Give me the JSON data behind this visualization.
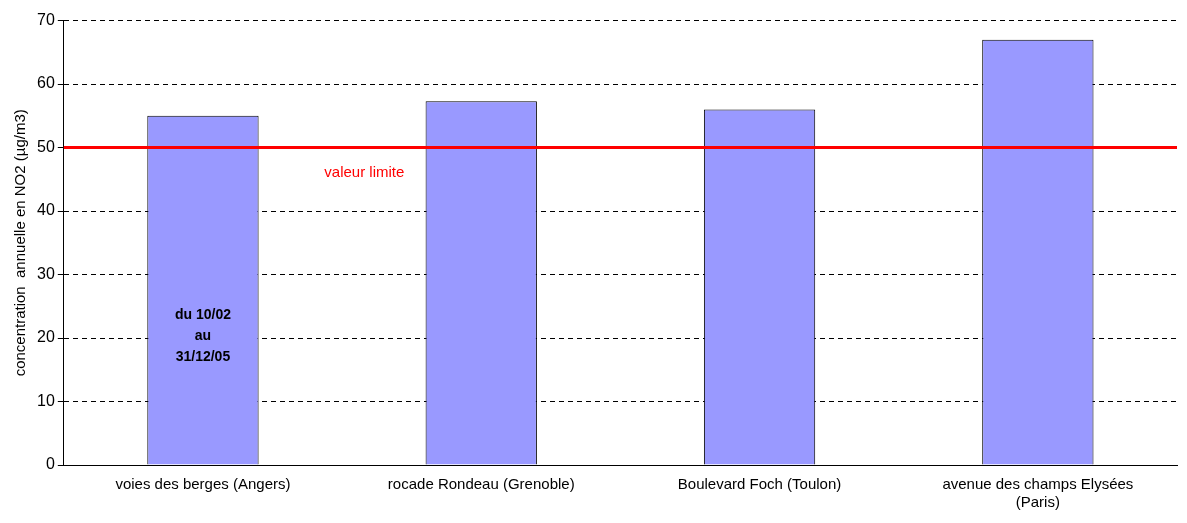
{
  "chart_data": {
    "type": "bar",
    "ylabel": "concentration  annuelle en NO2 (µg/m3)",
    "categories": [
      "voies des berges (Angers)",
      "rocade Rondeau (Grenoble)",
      "Boulevard Foch (Toulon)",
      "avenue des champs Elysées (Paris)"
    ],
    "values": [
      55,
      57.3,
      56,
      67
    ],
    "color": "#9999ff",
    "ylim": [
      0,
      70
    ],
    "yticks": [
      0,
      10,
      20,
      30,
      40,
      50,
      60,
      70
    ],
    "grid": "y",
    "ref_lines": [
      {
        "axis": "y",
        "value": 50,
        "label": "valeur limite",
        "color": "#ff0000"
      }
    ],
    "annotations": [
      "du 10/02 au 31/12/05"
    ]
  }
}
